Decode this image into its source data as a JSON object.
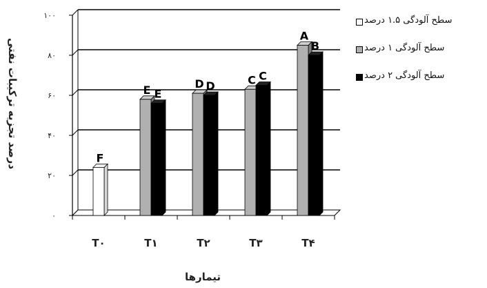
{
  "chart_data": {
    "type": "bar",
    "title": "",
    "xlabel": "تیمارها",
    "ylabel": "درصد تجزیه ترکیبات نفتی",
    "categories": [
      "T۰",
      "T۱",
      "T۲",
      "T۳",
      "T۴"
    ],
    "ylim": [
      0,
      100
    ],
    "yticks": [
      0,
      20,
      40,
      60,
      80,
      100
    ],
    "ytick_labels": [
      "۰",
      "۲۰",
      "۴۰",
      "۶۰",
      "۸۰",
      "۱۰۰"
    ],
    "grid": "horizontal",
    "legend_position": "right",
    "series": [
      {
        "name": "سطح آلودگی ۱.۵ درصد",
        "color": "#ffffff",
        "values": [
          24,
          null,
          null,
          null,
          null
        ],
        "letters": [
          "F",
          null,
          null,
          null,
          null
        ]
      },
      {
        "name": "سطح آلودگی ۱ درصد",
        "color": "#b0b0b0",
        "values": [
          null,
          58,
          61,
          63,
          85
        ],
        "letters": [
          null,
          "E",
          "D",
          "C",
          "A"
        ]
      },
      {
        "name": "سطح آلودگی ۲ درصد",
        "color": "#000000",
        "values": [
          null,
          56,
          60,
          65,
          80
        ],
        "letters": [
          null,
          "E",
          "D",
          "C",
          "B"
        ]
      }
    ]
  }
}
